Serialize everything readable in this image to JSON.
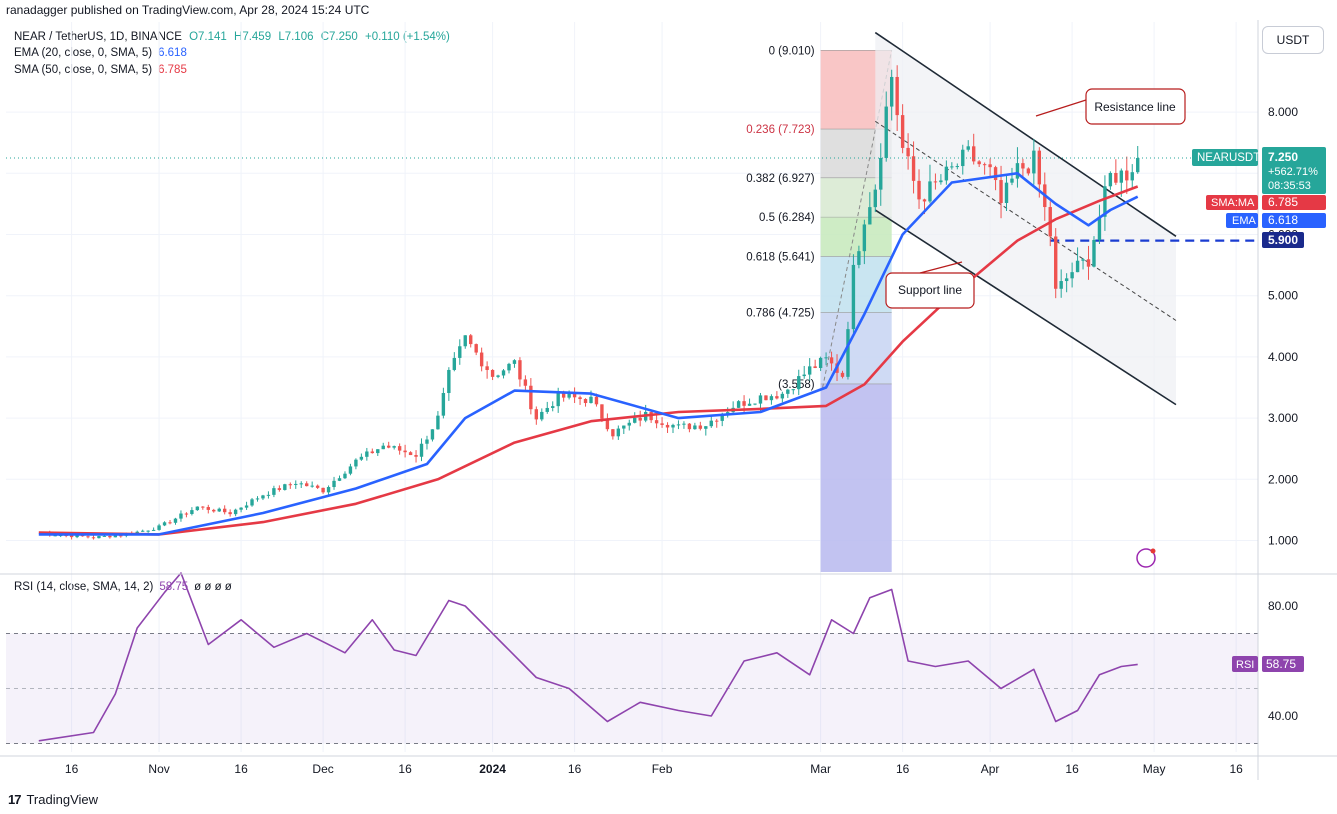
{
  "header": {
    "publisher_text": "ranadagger published on TradingView.com, Apr 28, 2024 15:24 UTC"
  },
  "legend": {
    "pair_label": "NEAR / TetherUS, 1D, BINANCE",
    "ohlc": {
      "o": "O7.141",
      "h": "H7.459",
      "l": "L7.106",
      "c": "C7.250",
      "chg": "+0.110 (+1.54%)"
    },
    "ema_label": "EMA (20, close, 0, SMA, 5)",
    "ema_value": "6.618",
    "sma_label": "SMA (50, close, 0, SMA, 5)",
    "sma_value": "6.785",
    "rsi_label": "RSI (14, close, SMA, 14, 2)",
    "rsi_value": "58.75",
    "rsi_extra": "ø ø ø ø"
  },
  "currency_button": "USDT",
  "footer": {
    "logo": "17",
    "brand": "TradingView"
  },
  "colors": {
    "up": "#26a69a",
    "down": "#ef5350",
    "ema": "#2962ff",
    "sma": "#e53945",
    "rsi": "#8e44ad",
    "channel": "#1f2a36",
    "axis_text": "#131722",
    "grid": "#f0f3fa"
  },
  "chart_data": {
    "type": "candlestick",
    "price_axis": {
      "ticks": [
        "8.000",
        "7.000",
        "6.000",
        "5.000",
        "4.000",
        "3.000",
        "2.000",
        "1.000"
      ],
      "ylim": [
        0.5,
        9.3
      ]
    },
    "time_axis": {
      "ticks": [
        "16",
        "Nov",
        "16",
        "Dec",
        "16",
        "2024",
        "16",
        "Feb",
        "Mar",
        "16",
        "Apr",
        "16",
        "May",
        "16"
      ]
    },
    "close_series": [
      {
        "date": "2023-10-10",
        "close": 1.12
      },
      {
        "date": "2023-10-20",
        "close": 1.05
      },
      {
        "date": "2023-10-26",
        "close": 1.1
      },
      {
        "date": "2023-11-01",
        "close": 1.22
      },
      {
        "date": "2023-11-08",
        "close": 1.55
      },
      {
        "date": "2023-11-14",
        "close": 1.45
      },
      {
        "date": "2023-11-20",
        "close": 1.75
      },
      {
        "date": "2023-11-26",
        "close": 1.95
      },
      {
        "date": "2023-12-01",
        "close": 1.82
      },
      {
        "date": "2023-12-07",
        "close": 2.3
      },
      {
        "date": "2023-12-12",
        "close": 2.55
      },
      {
        "date": "2023-12-18",
        "close": 2.4
      },
      {
        "date": "2023-12-22",
        "close": 3.0
      },
      {
        "date": "2023-12-24",
        "close": 3.7
      },
      {
        "date": "2023-12-27",
        "close": 4.3
      },
      {
        "date": "2024-01-01",
        "close": 3.7
      },
      {
        "date": "2024-01-05",
        "close": 3.9
      },
      {
        "date": "2024-01-09",
        "close": 3.0
      },
      {
        "date": "2024-01-13",
        "close": 3.35
      },
      {
        "date": "2024-01-19",
        "close": 3.3
      },
      {
        "date": "2024-01-23",
        "close": 2.75
      },
      {
        "date": "2024-01-29",
        "close": 3.05
      },
      {
        "date": "2024-02-04",
        "close": 2.85
      },
      {
        "date": "2024-02-09",
        "close": 2.9
      },
      {
        "date": "2024-02-14",
        "close": 3.2
      },
      {
        "date": "2024-02-19",
        "close": 3.35
      },
      {
        "date": "2024-02-23",
        "close": 3.4
      },
      {
        "date": "2024-02-28",
        "close": 3.8
      },
      {
        "date": "2024-03-02",
        "close": 3.95
      },
      {
        "date": "2024-03-05",
        "close": 3.7
      },
      {
        "date": "2024-03-07",
        "close": 5.4
      },
      {
        "date": "2024-03-09",
        "close": 6.3
      },
      {
        "date": "2024-03-11",
        "close": 6.8
      },
      {
        "date": "2024-03-13",
        "close": 8.05
      },
      {
        "date": "2024-03-14",
        "close": 8.6
      },
      {
        "date": "2024-03-16",
        "close": 7.4
      },
      {
        "date": "2024-03-19",
        "close": 6.6
      },
      {
        "date": "2024-03-22",
        "close": 6.8
      },
      {
        "date": "2024-03-25",
        "close": 7.05
      },
      {
        "date": "2024-03-28",
        "close": 7.3
      },
      {
        "date": "2024-04-01",
        "close": 7.0
      },
      {
        "date": "2024-04-03",
        "close": 6.5
      },
      {
        "date": "2024-04-06",
        "close": 7.05
      },
      {
        "date": "2024-04-09",
        "close": 7.2
      },
      {
        "date": "2024-04-12",
        "close": 6.0
      },
      {
        "date": "2024-04-13",
        "close": 5.05
      },
      {
        "date": "2024-04-16",
        "close": 5.4
      },
      {
        "date": "2024-04-19",
        "close": 5.6
      },
      {
        "date": "2024-04-21",
        "close": 6.3
      },
      {
        "date": "2024-04-23",
        "close": 6.95
      },
      {
        "date": "2024-04-26",
        "close": 7.0
      },
      {
        "date": "2024-04-28",
        "close": 7.25
      }
    ],
    "ema20": [
      {
        "date": "2023-10-10",
        "value": 1.1
      },
      {
        "date": "2023-11-01",
        "value": 1.1
      },
      {
        "date": "2023-11-20",
        "value": 1.45
      },
      {
        "date": "2023-12-07",
        "value": 1.85
      },
      {
        "date": "2023-12-20",
        "value": 2.25
      },
      {
        "date": "2023-12-27",
        "value": 3.0
      },
      {
        "date": "2024-01-05",
        "value": 3.45
      },
      {
        "date": "2024-01-19",
        "value": 3.4
      },
      {
        "date": "2024-02-04",
        "value": 3.0
      },
      {
        "date": "2024-02-19",
        "value": 3.1
      },
      {
        "date": "2024-03-02",
        "value": 3.5
      },
      {
        "date": "2024-03-09",
        "value": 4.7
      },
      {
        "date": "2024-03-16",
        "value": 6.0
      },
      {
        "date": "2024-03-25",
        "value": 6.85
      },
      {
        "date": "2024-04-06",
        "value": 7.0
      },
      {
        "date": "2024-04-13",
        "value": 6.5
      },
      {
        "date": "2024-04-19",
        "value": 6.15
      },
      {
        "date": "2024-04-23",
        "value": 6.4
      },
      {
        "date": "2024-04-28",
        "value": 6.618
      }
    ],
    "sma50": [
      {
        "date": "2023-10-10",
        "value": 1.13
      },
      {
        "date": "2023-11-01",
        "value": 1.1
      },
      {
        "date": "2023-11-20",
        "value": 1.3
      },
      {
        "date": "2023-12-07",
        "value": 1.6
      },
      {
        "date": "2023-12-22",
        "value": 2.0
      },
      {
        "date": "2024-01-05",
        "value": 2.6
      },
      {
        "date": "2024-01-19",
        "value": 2.95
      },
      {
        "date": "2024-02-04",
        "value": 3.1
      },
      {
        "date": "2024-02-19",
        "value": 3.15
      },
      {
        "date": "2024-03-02",
        "value": 3.2
      },
      {
        "date": "2024-03-09",
        "value": 3.55
      },
      {
        "date": "2024-03-16",
        "value": 4.25
      },
      {
        "date": "2024-03-25",
        "value": 5.0
      },
      {
        "date": "2024-04-06",
        "value": 5.9
      },
      {
        "date": "2024-04-13",
        "value": 6.25
      },
      {
        "date": "2024-04-21",
        "value": 6.55
      },
      {
        "date": "2024-04-28",
        "value": 6.785
      }
    ],
    "rsi": [
      {
        "date": "2023-10-10",
        "value": 31
      },
      {
        "date": "2023-10-20",
        "value": 34
      },
      {
        "date": "2023-10-24",
        "value": 48
      },
      {
        "date": "2023-10-28",
        "value": 72
      },
      {
        "date": "2023-11-02",
        "value": 85
      },
      {
        "date": "2023-11-05",
        "value": 92
      },
      {
        "date": "2023-11-10",
        "value": 66
      },
      {
        "date": "2023-11-16",
        "value": 75
      },
      {
        "date": "2023-11-22",
        "value": 65
      },
      {
        "date": "2023-11-28",
        "value": 70
      },
      {
        "date": "2023-12-05",
        "value": 63
      },
      {
        "date": "2023-12-10",
        "value": 75
      },
      {
        "date": "2023-12-14",
        "value": 64
      },
      {
        "date": "2023-12-18",
        "value": 62
      },
      {
        "date": "2023-12-24",
        "value": 82
      },
      {
        "date": "2023-12-27",
        "value": 80
      },
      {
        "date": "2024-01-03",
        "value": 66
      },
      {
        "date": "2024-01-09",
        "value": 54
      },
      {
        "date": "2024-01-15",
        "value": 50
      },
      {
        "date": "2024-01-22",
        "value": 38
      },
      {
        "date": "2024-01-28",
        "value": 45
      },
      {
        "date": "2024-02-04",
        "value": 42
      },
      {
        "date": "2024-02-10",
        "value": 40
      },
      {
        "date": "2024-02-16",
        "value": 60
      },
      {
        "date": "2024-02-22",
        "value": 63
      },
      {
        "date": "2024-02-28",
        "value": 55
      },
      {
        "date": "2024-03-03",
        "value": 75
      },
      {
        "date": "2024-03-07",
        "value": 70
      },
      {
        "date": "2024-03-10",
        "value": 83
      },
      {
        "date": "2024-03-14",
        "value": 86
      },
      {
        "date": "2024-03-17",
        "value": 60
      },
      {
        "date": "2024-03-22",
        "value": 58
      },
      {
        "date": "2024-03-28",
        "value": 60
      },
      {
        "date": "2024-04-03",
        "value": 50
      },
      {
        "date": "2024-04-09",
        "value": 57
      },
      {
        "date": "2024-04-13",
        "value": 38
      },
      {
        "date": "2024-04-17",
        "value": 42
      },
      {
        "date": "2024-04-21",
        "value": 55
      },
      {
        "date": "2024-04-25",
        "value": 58
      },
      {
        "date": "2024-04-28",
        "value": 58.75
      }
    ],
    "rsi_axis": {
      "ticks": [
        "80.00",
        "40.00"
      ],
      "ylim": [
        20,
        100
      ],
      "band": [
        30,
        70
      ]
    },
    "fibonacci": {
      "levels": [
        {
          "label": "0 (9.010)",
          "value": 9.01,
          "color": "#f8bcbc"
        },
        {
          "label": "0.236 (7.723)",
          "value": 7.723,
          "color": "#d9d9d9"
        },
        {
          "label": "0.382 (6.927)",
          "value": 6.927,
          "color": "#d7e9d0"
        },
        {
          "label": "0.5 (6.284)",
          "value": 6.284,
          "color": "#c6e9bb"
        },
        {
          "label": "0.618 (5.641)",
          "value": 5.641,
          "color": "#bfe1ee"
        },
        {
          "label": "0.786 (4.725)",
          "value": 4.725,
          "color": "#c7d4f2"
        },
        {
          "label": "(3.558)",
          "value": 3.558,
          "color": "#c7c6f2"
        }
      ]
    },
    "annotations": {
      "resistance_line": "Resistance line",
      "support_line": "Support line",
      "level_label": "5.900"
    },
    "axis_tags": {
      "symbol": "NEARUSDT",
      "price": "7.250",
      "change": "+562.71%",
      "countdown": "08:35:53",
      "sma_tag": "SMA:MA",
      "sma_tag_value": "6.785",
      "ema_tag": "EMA",
      "ema_tag_value": "6.618",
      "level_tag": "5.900",
      "rsi_tag": "RSI",
      "rsi_tag_value": "58.75"
    }
  }
}
